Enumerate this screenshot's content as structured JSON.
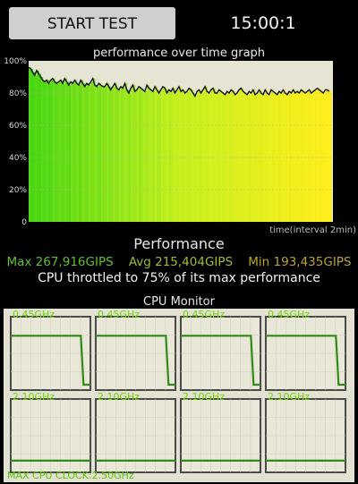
{
  "header": {
    "start_button_label": "START TEST",
    "timer": "15:00:1"
  },
  "chart_data": {
    "type": "area",
    "title": "performance over time graph",
    "xlabel": "time(interval 2min)",
    "y_tick_labels": [
      "0",
      "20%",
      "40%",
      "60%",
      "80%",
      "100%"
    ],
    "ylim": [
      0,
      100
    ],
    "grid": true,
    "series": [
      {
        "values": [
          96,
          95,
          93,
          91,
          94,
          92,
          90,
          88,
          87,
          88,
          86,
          88,
          89,
          87,
          86,
          87,
          88,
          86,
          89,
          87,
          85,
          87,
          86,
          88,
          86,
          85,
          88,
          86,
          84,
          86,
          85,
          87,
          89,
          85,
          84,
          86,
          85,
          84,
          84,
          86,
          84,
          82,
          84,
          86,
          83,
          82,
          84,
          83,
          86,
          82,
          80,
          83,
          85,
          81,
          82,
          84,
          83,
          82,
          81,
          85,
          83,
          82,
          81,
          84,
          82,
          80,
          82,
          84,
          83,
          80,
          82,
          81,
          83,
          80,
          82,
          84,
          81,
          82,
          80,
          81,
          83,
          82,
          80,
          78,
          81,
          82,
          80,
          82,
          84,
          81,
          80,
          82,
          83,
          80,
          80,
          82,
          81,
          80,
          79,
          81,
          80,
          82,
          81,
          79,
          80,
          82,
          83,
          81,
          80,
          79,
          81,
          80,
          82,
          79,
          80,
          82,
          80,
          79,
          82,
          80,
          79,
          82,
          81,
          80,
          79,
          81,
          80,
          82,
          80,
          79,
          81,
          80,
          82,
          80,
          81,
          80,
          82,
          81,
          80,
          81,
          82,
          80,
          81,
          82,
          83,
          82,
          81,
          80,
          82,
          82,
          81
        ]
      }
    ]
  },
  "performance": {
    "title": "Performance",
    "max": "Max 267,916GIPS",
    "avg": "Avg 215,404GIPS",
    "min": "Min 193,435GIPS",
    "throttle_text": "CPU throttled to 75% of its max performance",
    "colors": {
      "max": "#5fc22b",
      "avg": "#a6b92a",
      "min": "#b8a52a"
    }
  },
  "cpu_monitor": {
    "title": "CPU Monitor",
    "cores": [
      {
        "freq": "0.45GHz",
        "level_frac": 0.26,
        "drop_frac": 0.88
      },
      {
        "freq": "0.45GHz",
        "level_frac": 0.26,
        "drop_frac": 0.88
      },
      {
        "freq": "0.45GHz",
        "level_frac": 0.26,
        "drop_frac": 0.88
      },
      {
        "freq": "0.45GHz",
        "level_frac": 0.26,
        "drop_frac": 0.88
      },
      {
        "freq": "2.10GHz",
        "level_frac": 0.84
      },
      {
        "freq": "2.10GHz",
        "level_frac": 0.84
      },
      {
        "freq": "2.10GHz",
        "level_frac": 0.84
      },
      {
        "freq": "2.10GHz",
        "level_frac": 0.84
      }
    ],
    "max_clock": "MAX CPU CLOCK:2.50GHz"
  }
}
